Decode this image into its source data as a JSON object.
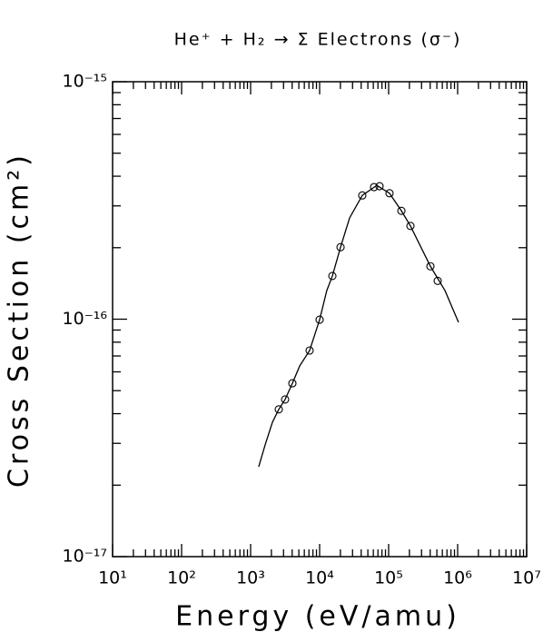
{
  "chart_data": {
    "type": "line",
    "title": "He⁺ + H₂ → Σ Electrons (σ⁻)",
    "xlabel": "Energy (eV/amu)",
    "ylabel": "Cross Section (cm²)",
    "xscale": "log",
    "yscale": "log",
    "xlim": [
      10,
      10000000
    ],
    "ylim": [
      1e-17,
      1e-15
    ],
    "xticks": [
      {
        "value": 10,
        "label": "10¹"
      },
      {
        "value": 100,
        "label": "10²"
      },
      {
        "value": 1000,
        "label": "10³"
      },
      {
        "value": 10000,
        "label": "10⁴"
      },
      {
        "value": 100000,
        "label": "10⁵"
      },
      {
        "value": 1000000,
        "label": "10⁶"
      },
      {
        "value": 10000000,
        "label": "10⁷"
      }
    ],
    "yticks": [
      {
        "value": 1e-17,
        "label": "10⁻¹⁷"
      },
      {
        "value": 1e-16,
        "label": "10⁻¹⁶"
      },
      {
        "value": 1e-15,
        "label": "10⁻¹⁵"
      }
    ],
    "grid": false,
    "series": [
      {
        "type": "line",
        "color": "#000000",
        "x": [
          1310,
          1620,
          2070,
          2560,
          3160,
          4030,
          5140,
          7160,
          10000,
          12700,
          15300,
          20100,
          27200,
          41500,
          67500,
          103000,
          153000,
          207000,
          403000,
          655000,
          1030000
        ],
        "values": [
          2.39e-17,
          2.95e-17,
          3.68e-17,
          4.17e-17,
          4.59e-17,
          5.37e-17,
          6.35e-17,
          7.38e-17,
          9.95e-17,
          1.32e-16,
          1.52e-16,
          2.01e-16,
          2.67e-16,
          3.32e-16,
          3.66e-16,
          3.39e-16,
          2.86e-16,
          2.47e-16,
          1.67e-16,
          1.32e-16,
          9.7e-17
        ]
      },
      {
        "type": "scatter",
        "color": "#000000",
        "marker": "open-circle",
        "x": [
          2560,
          3160,
          4030,
          7160,
          10000,
          15300,
          20100,
          41500,
          61500,
          73800,
          103000,
          153000,
          207000,
          403000,
          514000
        ],
        "values": [
          4.17e-17,
          4.59e-17,
          5.37e-17,
          7.38e-17,
          9.95e-17,
          1.52e-16,
          2.01e-16,
          3.32e-16,
          3.6e-16,
          3.63e-16,
          3.39e-16,
          2.86e-16,
          2.47e-16,
          1.67e-16,
          1.45e-16
        ]
      }
    ]
  }
}
